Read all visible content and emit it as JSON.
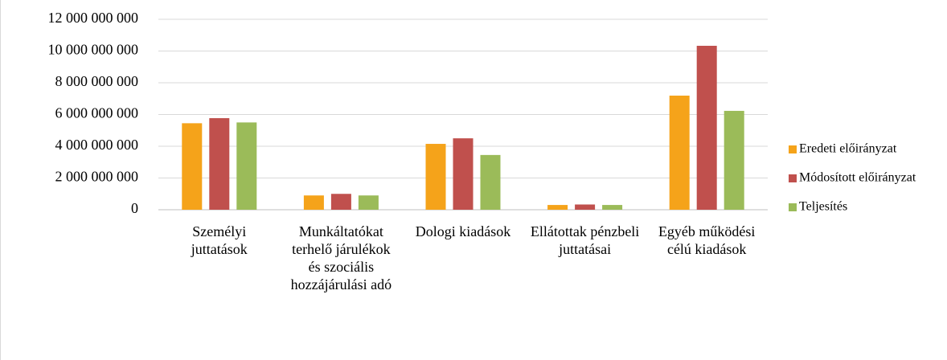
{
  "chart_data": {
    "type": "bar",
    "categories": [
      "Személyi juttatások",
      "Munkáltatókat terhelő járulékok és szociális hozzájárulási adó",
      "Dologi kiadások",
      "Ellátottak pénzbeli juttatásai",
      "Egyéb működési célú kiadások"
    ],
    "series": [
      {
        "name": "Eredeti előirányzat",
        "color": "#f5a31a",
        "values": [
          5450000000,
          900000000,
          4150000000,
          300000000,
          7190000000
        ]
      },
      {
        "name": "Módosított előirányzat",
        "color": "#c0504d",
        "values": [
          5770000000,
          1000000000,
          4500000000,
          330000000,
          10330000000
        ]
      },
      {
        "name": "Teljesítés",
        "color": "#9bbb59",
        "values": [
          5500000000,
          900000000,
          3450000000,
          300000000,
          6230000000
        ]
      }
    ],
    "ylim": [
      0,
      12000000000
    ],
    "yticks": [
      0,
      {
        "value": 2000000000,
        "label": "2 000 000 000"
      },
      {
        "value": 4000000000,
        "label": "4 000 000 000"
      },
      {
        "value": 6000000000,
        "label": "6 000 000 000"
      },
      {
        "value": 8000000000,
        "label": "8 000 000 000"
      },
      {
        "value": 10000000000,
        "label": "10 000 000 000"
      },
      {
        "value": 12000000000,
        "label": "12 000 000 000"
      }
    ],
    "grid": true,
    "legend": "right"
  }
}
